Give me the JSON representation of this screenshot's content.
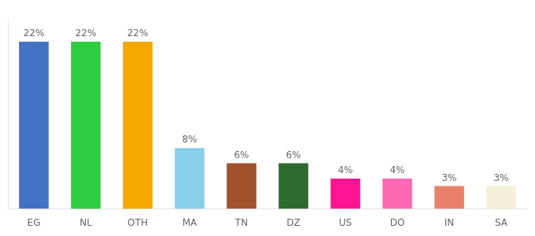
{
  "chart_data": {
    "type": "bar",
    "categories": [
      "EG",
      "NL",
      "OTH",
      "MA",
      "TN",
      "DZ",
      "US",
      "DO",
      "IN",
      "SA"
    ],
    "values": [
      22,
      22,
      22,
      8,
      6,
      6,
      4,
      4,
      3,
      3
    ],
    "value_labels": [
      "22%",
      "22%",
      "22%",
      "8%",
      "6%",
      "6%",
      "4%",
      "4%",
      "3%",
      "3%"
    ],
    "data_labels": true,
    "colors": [
      "#4472c4",
      "#2ecc40",
      "#f5a800",
      "#87ceeb",
      "#a0522d",
      "#2d6a2d",
      "#ff1493",
      "#ff69b4",
      "#e8806a",
      "#f5f0dc"
    ],
    "ylim": [
      0,
      25
    ],
    "grid": false,
    "tick_labels": "x"
  }
}
